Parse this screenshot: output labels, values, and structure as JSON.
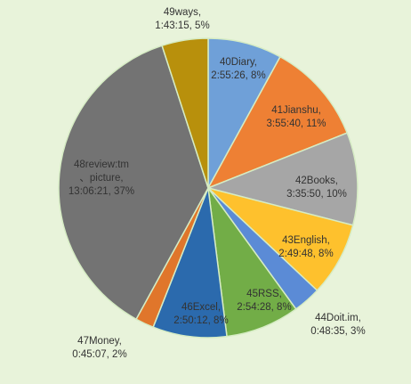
{
  "chart_data": {
    "type": "pie",
    "title": "",
    "start": "12 o'clock",
    "direction": "clockwise",
    "legend": "none",
    "background": "#e8f3da",
    "slice_border_color": "#d6ecc4",
    "slices": [
      {
        "name": "40Diary",
        "time": "2:55:26",
        "percent": 8,
        "color": "#6fa0d8",
        "label_lines": [
          "40Diary,",
          "2:55:26, 8%"
        ]
      },
      {
        "name": "41Jianshu",
        "time": "3:55:40",
        "percent": 11,
        "color": "#ee8034",
        "label_lines": [
          "41Jianshu,",
          "3:55:40, 11%"
        ]
      },
      {
        "name": "42Books",
        "time": "3:35:50",
        "percent": 10,
        "color": "#a6a6a6",
        "label_lines": [
          "42Books,",
          "3:35:50, 10%"
        ]
      },
      {
        "name": "43English",
        "time": "2:49:48",
        "percent": 8,
        "color": "#fec12d",
        "label_lines": [
          "43English,",
          "2:49:48, 8%"
        ]
      },
      {
        "name": "44Doit.im",
        "time": "0:48:35",
        "percent": 3,
        "color": "#5b8bd6",
        "label_lines": [
          "44Doit.im,",
          "0:48:35, 3%"
        ]
      },
      {
        "name": "45RSS",
        "time": "2:54:28",
        "percent": 8,
        "color": "#72ad47",
        "label_lines": [
          "45RSS,",
          "2:54:28, 8%"
        ]
      },
      {
        "name": "46Excel",
        "time": "2:50:12",
        "percent": 8,
        "color": "#2b6aad",
        "label_lines": [
          "46Excel,",
          "2:50:12, 8%"
        ]
      },
      {
        "name": "47Money",
        "time": "0:45:07",
        "percent": 2,
        "color": "#e0762b",
        "label_lines": [
          "47Money,",
          "0:45:07, 2%"
        ]
      },
      {
        "name": "48review:tm picture",
        "time": "13:06:21",
        "percent": 37,
        "color": "#737373",
        "label_lines": [
          "48review:tm",
          "、picture,",
          "13:06:21, 37%"
        ]
      },
      {
        "name": "49ways",
        "time": "1:43:15",
        "percent": 5,
        "color": "#b8900c",
        "label_lines": [
          "49ways,",
          "1:43:15, 5%"
        ]
      }
    ]
  }
}
